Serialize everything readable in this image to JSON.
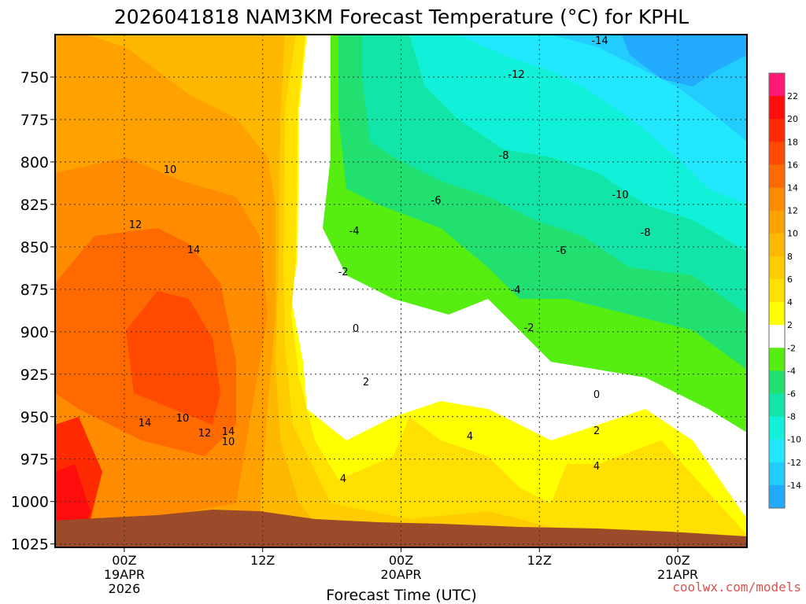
{
  "chart_data": {
    "type": "heatmap",
    "title": "2026041818 NAM3KM Forecast Temperature (°C) for KPHL",
    "xlabel": "Forecast Time (UTC)",
    "ylabel": "",
    "credit": "coolwx.com/models",
    "y_axis": {
      "ticks": [
        750,
        775,
        800,
        825,
        850,
        875,
        900,
        925,
        950,
        975,
        1000,
        1025
      ],
      "range": [
        725,
        1027
      ]
    },
    "x_axis": {
      "ticks": [
        {
          "line1": "00Z",
          "line2": "19APR",
          "line3": "2026",
          "hour": 6
        },
        {
          "line1": "12Z",
          "line2": "",
          "line3": "",
          "hour": 18
        },
        {
          "line1": "00Z",
          "line2": "20APR",
          "line3": "",
          "hour": 30
        },
        {
          "line1": "12Z",
          "line2": "",
          "line3": "",
          "hour": 42
        },
        {
          "line1": "00Z",
          "line2": "21APR",
          "line3": "",
          "hour": 54
        }
      ],
      "range_hours": [
        0,
        60
      ]
    },
    "colorbar": {
      "labels": [
        "22",
        "20",
        "18",
        "16",
        "14",
        "12",
        "10",
        "8",
        "6",
        "4",
        "2",
        "-2",
        "-4",
        "-6",
        "-8",
        "-10",
        "-12",
        "-14"
      ],
      "colors": [
        "#ff1a75",
        "#ff0d0d",
        "#ff2a00",
        "#ff4a00",
        "#ff6a00",
        "#ff8c00",
        "#ffa200",
        "#ffb800",
        "#ffcc00",
        "#ffe000",
        "#ffff00",
        "#ffffff",
        "#55ee10",
        "#22e070",
        "#11e6a8",
        "#11f0d8",
        "#22e8ff",
        "#22ccff",
        "#22aaff"
      ]
    },
    "contour_labels": [
      "-14",
      "-12",
      "10",
      "-8",
      "-10",
      "-6",
      "12",
      "-4",
      "-8",
      "14",
      "-6",
      "-2",
      "-4",
      "0",
      "-2",
      "2",
      "0",
      "14",
      "10",
      "12",
      "14",
      "10",
      "4",
      "2",
      "4",
      "4"
    ],
    "surface_color": "#9b4a2a"
  }
}
